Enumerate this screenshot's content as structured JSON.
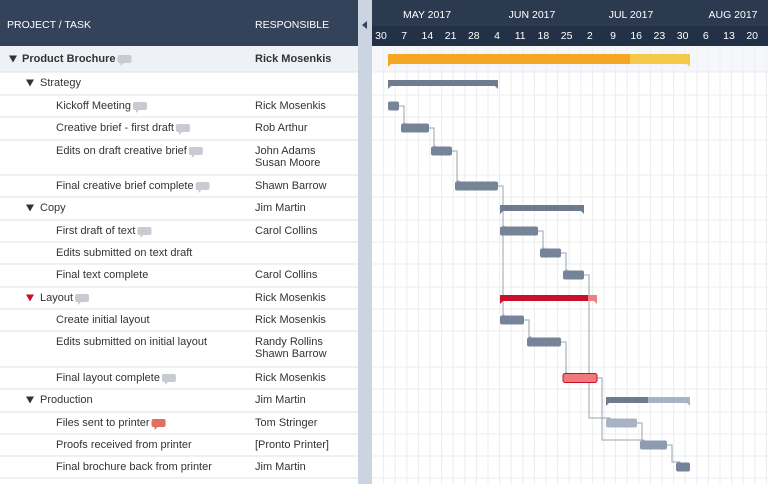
{
  "header": {
    "columns": [
      "PROJECT / TASK",
      "RESPONSIBLE"
    ]
  },
  "timeline": {
    "months": [
      "MAY 2017",
      "JUN 2017",
      "JUL 2017",
      "AUG 2017"
    ],
    "days": [
      30,
      7,
      14,
      21,
      28,
      4,
      11,
      18,
      25,
      2,
      9,
      16,
      23,
      30,
      6,
      13,
      20
    ]
  },
  "project": {
    "task": "Product Brochure",
    "responsible": [
      "Rick Mosenkis"
    ],
    "groups": [
      {
        "task": "Strategy",
        "responsible": [],
        "tasks": [
          {
            "task": "Kickoff Meeting",
            "responsible": [
              "Rick Mosenkis"
            ]
          },
          {
            "task": "Creative brief - first draft",
            "responsible": [
              "Rob Arthur"
            ]
          },
          {
            "task": "Edits on draft creative brief",
            "responsible": [
              "John Adams",
              "Susan Moore"
            ]
          },
          {
            "task": "Final creative brief complete",
            "responsible": [
              "Shawn Barrow"
            ]
          }
        ]
      },
      {
        "task": "Copy",
        "responsible": [
          "Jim Martin"
        ],
        "tasks": [
          {
            "task": "First draft of text",
            "responsible": [
              "Carol Collins"
            ]
          },
          {
            "task": "Edits submitted on text draft",
            "responsible": []
          },
          {
            "task": "Final text complete",
            "responsible": [
              "Carol Collins"
            ]
          }
        ]
      },
      {
        "task": "Layout",
        "responsible": [
          "Rick Mosenkis"
        ],
        "tasks": [
          {
            "task": "Create initial layout",
            "responsible": [
              "Rick Mosenkis"
            ]
          },
          {
            "task": "Edits submitted on initial layout",
            "responsible": [
              "Randy Rollins",
              "Shawn Barrow"
            ]
          },
          {
            "task": "Final layout complete",
            "responsible": [
              "Rick Mosenkis"
            ]
          }
        ]
      },
      {
        "task": "Production",
        "responsible": [
          "Jim Martin"
        ],
        "tasks": [
          {
            "task": "Files sent to printer",
            "responsible": [
              "Tom Stringer"
            ]
          },
          {
            "task": "Proofs received from printer",
            "responsible": [
              "[Pronto Printer]"
            ]
          },
          {
            "task": "Final brochure back from printer",
            "responsible": [
              "Jim Martin"
            ]
          }
        ]
      }
    ]
  }
}
